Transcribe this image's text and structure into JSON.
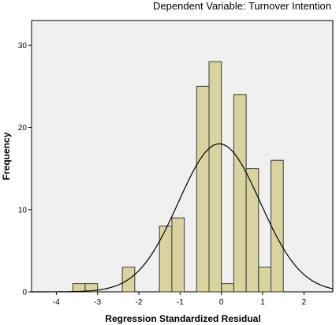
{
  "chart_data": {
    "type": "bar",
    "title": "Dependent Variable: Turnover Intention",
    "xlabel": "Regression Standardized Residual",
    "ylabel": "Frequency",
    "xlim": [
      -4.6,
      2.7
    ],
    "ylim": [
      0,
      33
    ],
    "x_ticks": [
      "-4",
      "-3",
      "-2",
      "-1",
      "0",
      "1",
      "2"
    ],
    "y_ticks": [
      "0",
      "10",
      "20",
      "30"
    ],
    "bin_width": 0.3,
    "bins": [
      {
        "x0": -3.6,
        "x1": -3.3,
        "value": 1
      },
      {
        "x0": -3.3,
        "x1": -3.0,
        "value": 1
      },
      {
        "x0": -2.4,
        "x1": -2.1,
        "value": 3
      },
      {
        "x0": -1.5,
        "x1": -1.2,
        "value": 8
      },
      {
        "x0": -1.2,
        "x1": -0.9,
        "value": 9
      },
      {
        "x0": -0.6,
        "x1": -0.3,
        "value": 25
      },
      {
        "x0": -0.3,
        "x1": 0.0,
        "value": 28
      },
      {
        "x0": 0.0,
        "x1": 0.3,
        "value": 1
      },
      {
        "x0": 0.3,
        "x1": 0.6,
        "value": 24
      },
      {
        "x0": 0.6,
        "x1": 0.9,
        "value": 15
      },
      {
        "x0": 0.9,
        "x1": 1.2,
        "value": 3
      },
      {
        "x0": 1.2,
        "x1": 1.5,
        "value": 16
      }
    ],
    "normal_curve": {
      "mean": -0.05,
      "sd": 0.99,
      "peak": 18
    },
    "colors": {
      "bar_fill": "#d9d3a1",
      "bar_stroke": "#3a3a2e",
      "plot_bg": "#f0f0f0",
      "curve": "#000000"
    },
    "grid": false,
    "legend": "none"
  }
}
